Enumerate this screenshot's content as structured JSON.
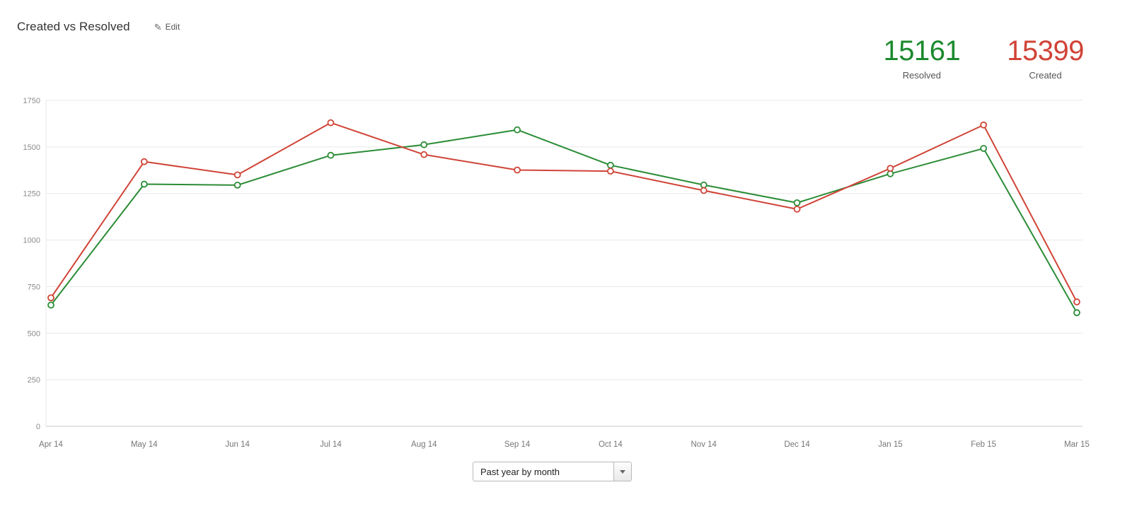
{
  "header": {
    "title": "Created vs Resolved",
    "edit_label": "Edit"
  },
  "stats": {
    "resolved": {
      "value": "15161",
      "label": "Resolved",
      "color": "#1b8a2e"
    },
    "created": {
      "value": "15399",
      "label": "Created",
      "color": "#d04437"
    }
  },
  "controls": {
    "period_select": {
      "value": "Past year by month"
    }
  },
  "chart_data": {
    "type": "line",
    "title": "Created vs Resolved",
    "categories": [
      "Apr 14",
      "May 14",
      "Jun 14",
      "Jul 14",
      "Aug 14",
      "Sep 14",
      "Oct 14",
      "Nov 14",
      "Dec 14",
      "Jan 15",
      "Feb 15",
      "Mar 15"
    ],
    "series": [
      {
        "name": "Resolved",
        "color": "#2a8c35",
        "total": 15161,
        "values": [
          651,
          1300,
          1295,
          1455,
          1512,
          1592,
          1402,
          1296,
          1200,
          1356,
          1492,
          610
        ]
      },
      {
        "name": "Created",
        "color": "#d04437",
        "total": 15399,
        "values": [
          690,
          1421,
          1350,
          1630,
          1459,
          1376,
          1370,
          1266,
          1166,
          1385,
          1618,
          668
        ]
      }
    ],
    "xlabel": "",
    "ylabel": "",
    "ylim": [
      0,
      1750
    ],
    "yticks": [
      0,
      250,
      500,
      750,
      1000,
      1250,
      1500,
      1750
    ],
    "grid": true,
    "legend_position": "none",
    "marker": "open-circle"
  }
}
